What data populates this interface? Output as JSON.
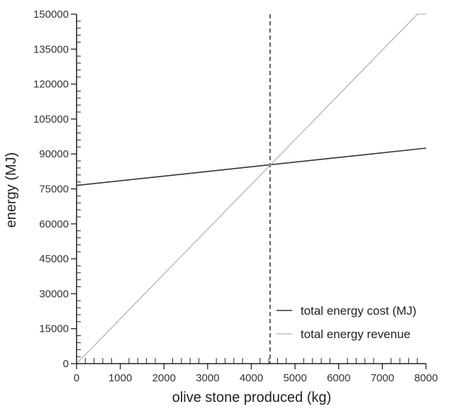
{
  "chart_data": {
    "type": "line",
    "title": "",
    "xlabel": "olive stone produced (kg)",
    "ylabel": "energy (MJ)",
    "xlim": [
      0,
      8000
    ],
    "ylim": [
      0,
      150000
    ],
    "x_ticks": [
      0,
      1000,
      2000,
      3000,
      4000,
      5000,
      6000,
      7000,
      8000
    ],
    "y_ticks": [
      0,
      15000,
      30000,
      45000,
      60000,
      75000,
      90000,
      105000,
      120000,
      135000,
      150000
    ],
    "grid": false,
    "legend_position": "bottom-right",
    "series": [
      {
        "name": "total energy cost (MJ)",
        "color": "#333333",
        "x": [
          0,
          8000
        ],
        "y": [
          76500,
          92500
        ]
      },
      {
        "name": "total energy revenue",
        "color": "#b4b4b4",
        "x": [
          0,
          7800,
          8000
        ],
        "y": [
          0,
          150000,
          150000
        ]
      }
    ],
    "annotations": [
      {
        "type": "vertical-dashed-line",
        "x": 4430,
        "label": ""
      }
    ]
  }
}
